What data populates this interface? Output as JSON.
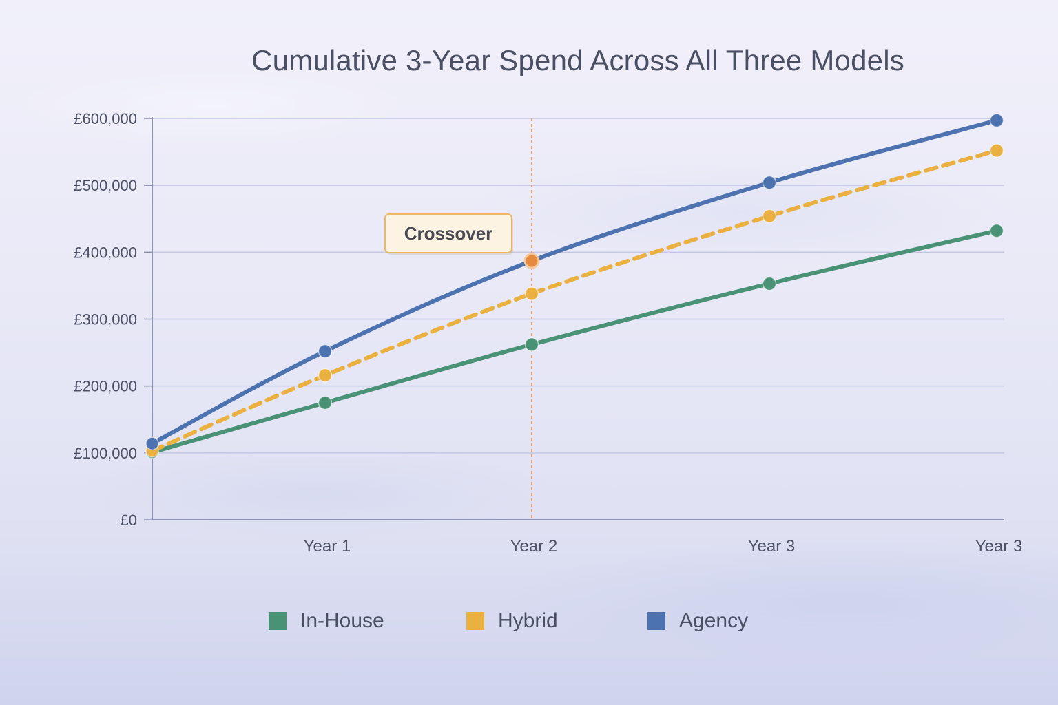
{
  "chart_data": {
    "type": "line",
    "title": "Cumulative 3-Year Spend Across All Three Models",
    "x_labels": [
      "",
      "Year 1",
      "Year 2",
      "Year 3",
      "Year 3"
    ],
    "y_ticks": [
      {
        "value": 0,
        "label": "£0"
      },
      {
        "value": 100000,
        "label": "£100,000"
      },
      {
        "value": 200000,
        "label": "£200,000"
      },
      {
        "value": 300000,
        "label": "£300,000"
      },
      {
        "value": 400000,
        "label": "£400,000"
      },
      {
        "value": 500000,
        "label": "£500,000"
      },
      {
        "value": 600000,
        "label": "£600,000"
      }
    ],
    "ylim": [
      0,
      600000
    ],
    "grid": true,
    "legend_position": "bottom",
    "series": [
      {
        "name": "In-House",
        "color": "#4a9275",
        "dashed": false,
        "values": [
          101000,
          175000,
          262000,
          353000,
          432000
        ]
      },
      {
        "name": "Hybrid",
        "color": "#eab040",
        "dashed": true,
        "values": [
          103000,
          216000,
          338000,
          454000,
          552000
        ]
      },
      {
        "name": "Agency",
        "color": "#4c72b0",
        "dashed": false,
        "values": [
          114000,
          252000,
          387000,
          504000,
          597000
        ]
      }
    ],
    "annotation": {
      "label": "Crossover",
      "x_index": 2,
      "value": 387000,
      "line_color": "#e58a3e"
    }
  }
}
